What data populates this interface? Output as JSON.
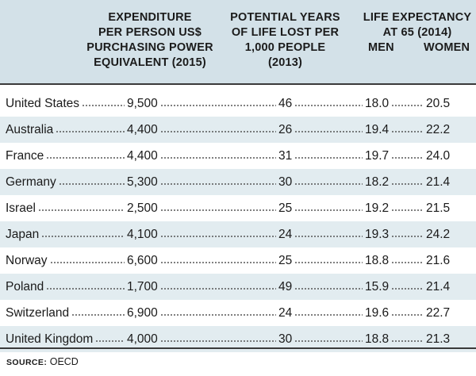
{
  "header": {
    "expenditure": [
      "EXPENDITURE",
      "PER PERSON US$",
      "PURCHASING POWER",
      "EQUIVALENT (2015)"
    ],
    "pyll": [
      "POTENTIAL YEARS",
      "OF LIFE LOST PER",
      "1,000 PEOPLE",
      "(2013)"
    ],
    "life_exp_title": [
      "LIFE EXPECTANCY",
      "AT 65 (2014)"
    ],
    "men": "MEN",
    "women": "WOMEN"
  },
  "rows": [
    {
      "country": "United States",
      "expenditure": "9,500",
      "pyll": "46",
      "men": "18.0",
      "women": "20.5"
    },
    {
      "country": "Australia",
      "expenditure": "4,400",
      "pyll": "26",
      "men": "19.4",
      "women": "22.2"
    },
    {
      "country": "France",
      "expenditure": "4,400",
      "pyll": "31",
      "men": "19.7",
      "women": "24.0"
    },
    {
      "country": "Germany",
      "expenditure": "5,300",
      "pyll": "30",
      "men": "18.2",
      "women": "21.4"
    },
    {
      "country": "Israel",
      "expenditure": "2,500",
      "pyll": "25",
      "men": "19.2",
      "women": "21.5"
    },
    {
      "country": "Japan",
      "expenditure": "4,100",
      "pyll": "24",
      "men": "19.3",
      "women": "24.2"
    },
    {
      "country": "Norway",
      "expenditure": "6,600",
      "pyll": "25",
      "men": "18.8",
      "women": "21.6"
    },
    {
      "country": "Poland",
      "expenditure": "1,700",
      "pyll": "49",
      "men": "15.9",
      "women": "21.4"
    },
    {
      "country": "Switzerland",
      "expenditure": "6,900",
      "pyll": "24",
      "men": "19.6",
      "women": "22.7"
    },
    {
      "country": "United Kingdom",
      "expenditure": "4,000",
      "pyll": "30",
      "men": "18.8",
      "women": "21.3"
    }
  ],
  "source": {
    "label": "SOURCE:",
    "text": "OECD"
  },
  "colors": {
    "header_bg": "#d3e1e8",
    "row_shade": "#e2ecf0",
    "rule": "#3a3a3a"
  }
}
